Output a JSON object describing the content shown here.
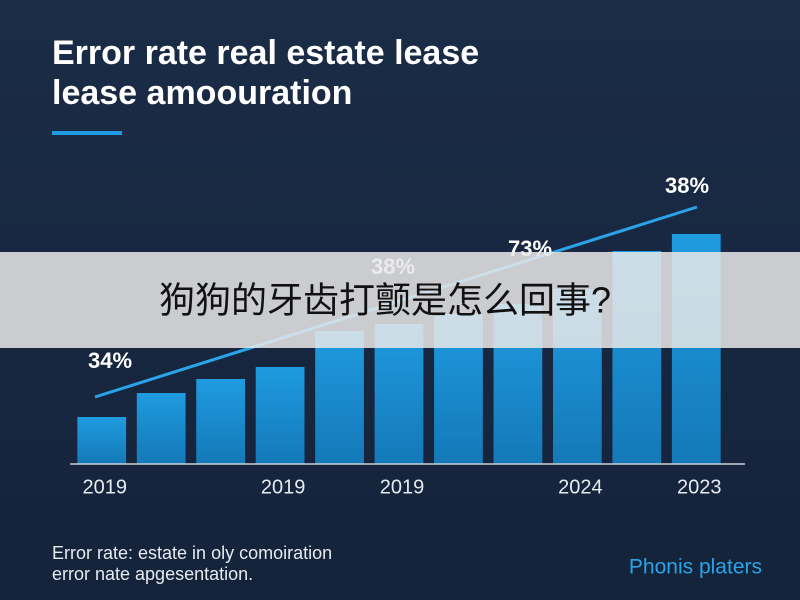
{
  "chart_data": {
    "type": "bar",
    "title": [
      "Error rate real estate lease",
      "lease amoouration"
    ],
    "categories": [
      "2019",
      null,
      null,
      "2019",
      null,
      "2019",
      null,
      null,
      "2024",
      null,
      "2023"
    ],
    "values": [
      47,
      71,
      85,
      97,
      133,
      140,
      150,
      160,
      175,
      213,
      230
    ],
    "color": "#1a8fd0",
    "ylim": [
      0,
      240
    ],
    "annotations": [
      "34%",
      "38%",
      "73%",
      "38%"
    ],
    "notes": [
      "Error rate: estate in oly comoiration",
      "error nate apgesentation."
    ],
    "source": "Phonis platers"
  },
  "overlay_text": "狗狗的牙齿打颤是怎么回事?"
}
